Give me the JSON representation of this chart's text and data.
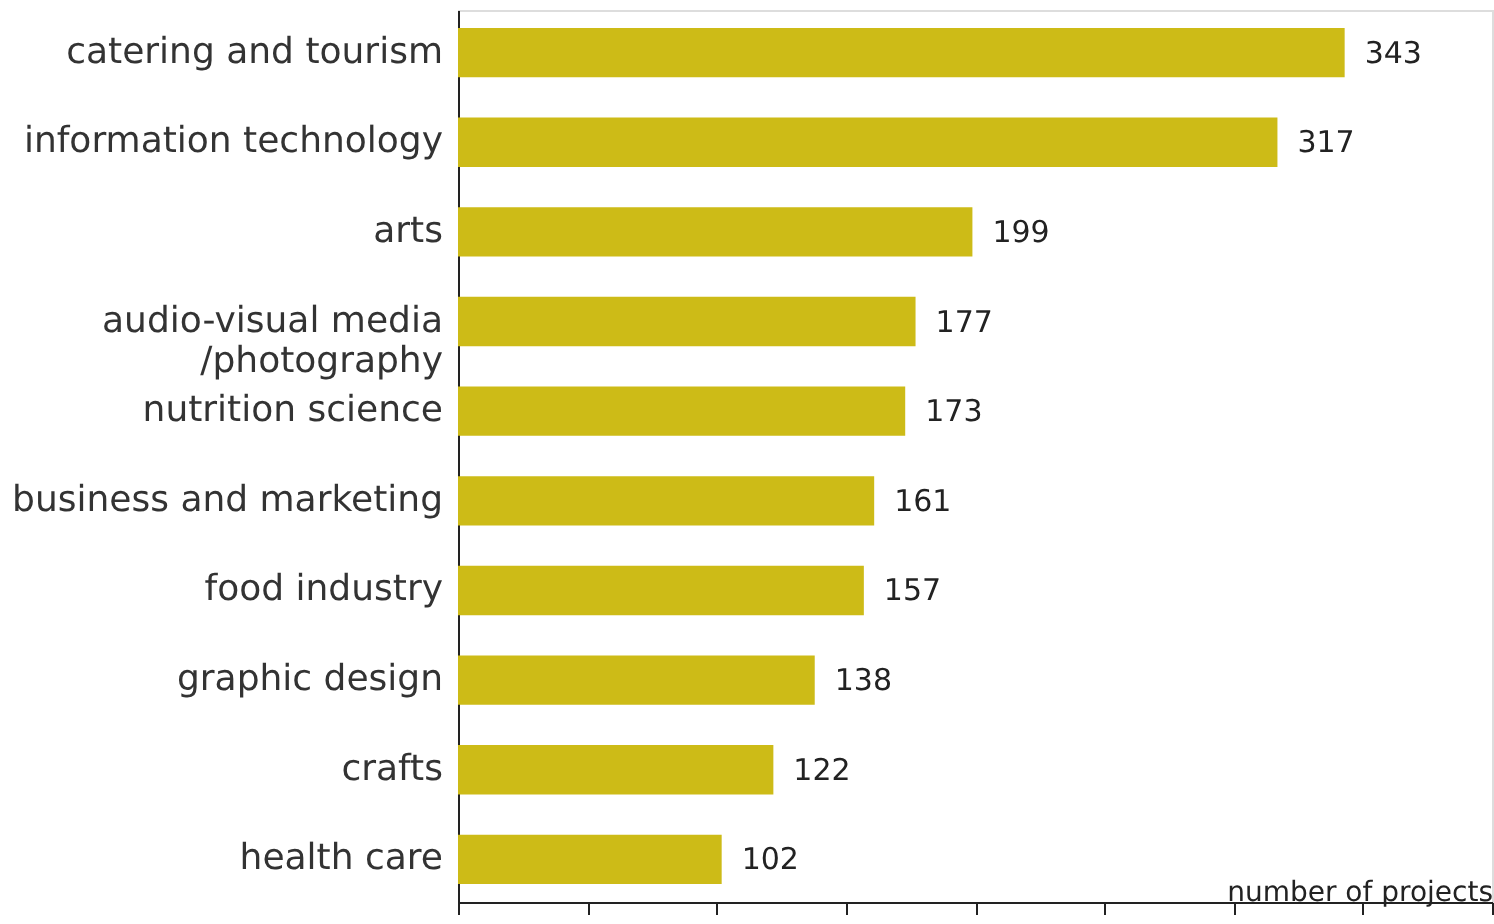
{
  "chart_data": {
    "type": "bar",
    "orientation": "horizontal",
    "categories": [
      "catering and tourism",
      "information technology",
      "arts",
      "audio-visual media\n/photography",
      "nutrition science",
      "business and marketing",
      "food industry",
      "graphic design",
      "crafts",
      "health care"
    ],
    "values": [
      343,
      317,
      199,
      177,
      173,
      161,
      157,
      138,
      122,
      102
    ],
    "color": "#cdbb17",
    "xlabel": "number of projects",
    "xlim": [
      0,
      400
    ],
    "xticks": [
      {
        "value": 0,
        "label": null
      },
      {
        "value": 50,
        "label": null
      },
      {
        "value": 100,
        "label": null
      },
      {
        "value": 150,
        "label": null
      },
      {
        "value": 200,
        "label": null
      },
      {
        "value": 250,
        "label": null
      },
      {
        "value": 300,
        "label": null
      },
      {
        "value": 350,
        "label": null
      },
      {
        "value": 400,
        "label": null
      }
    ],
    "tick_labels": "y",
    "data_labels": true,
    "grid": false
  }
}
